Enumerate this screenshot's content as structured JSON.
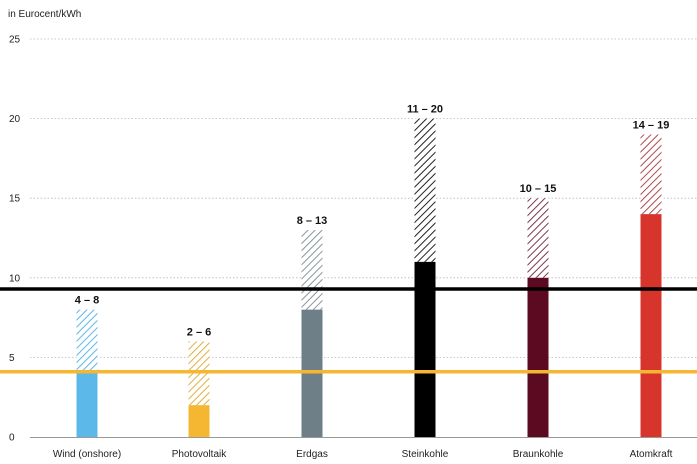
{
  "chart_data": {
    "type": "bar",
    "ylabel": "in Eurocent/kWh",
    "ylim": [
      0,
      25
    ],
    "yticks": [
      0,
      5,
      10,
      15,
      20,
      25
    ],
    "grid": true,
    "categories": [
      "Wind (onshore)",
      "Photovoltaik",
      "Erdgas",
      "Steinkohle",
      "Braunkohle",
      "Atomkraft"
    ],
    "series": [
      {
        "values": [
          4,
          2,
          8,
          11,
          10,
          14
        ]
      },
      {
        "values": [
          8,
          6,
          13,
          20,
          15,
          19
        ]
      }
    ],
    "range_labels": [
      "4 – 8",
      "2 – 6",
      "8 – 13",
      "11 – 20",
      "10 – 15",
      "14 – 19"
    ],
    "colors": [
      "#5bb8e8",
      "#f5b731",
      "#6e7f87",
      "#000000",
      "#5c0a22",
      "#d7352b"
    ],
    "hatch_colors": [
      "#5bb8e8",
      "#e0b040",
      "#8a969c",
      "#222222",
      "#7a3a52",
      "#b04a4a"
    ],
    "reference_lines": [
      {
        "value": 9.3,
        "color": "#000000"
      },
      {
        "value": 4.1,
        "color": "#f5b731"
      }
    ]
  }
}
